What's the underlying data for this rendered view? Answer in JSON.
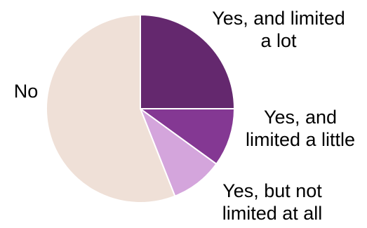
{
  "chart_data": {
    "type": "pie",
    "start_angle": "12 o'clock, clockwise",
    "slices": [
      {
        "label_lines": [
          "Yes, and limited",
          "a lot"
        ],
        "value": 25,
        "color": "#64286e"
      },
      {
        "label_lines": [
          "Yes, and",
          "limited a little"
        ],
        "value": 10,
        "color": "#843893"
      },
      {
        "label_lines": [
          "Yes, but not",
          "limited at all"
        ],
        "value": 9,
        "color": "#d4a5dc"
      },
      {
        "label_lines": [
          "No"
        ],
        "value": 56,
        "color": "#efe0d7"
      }
    ]
  }
}
